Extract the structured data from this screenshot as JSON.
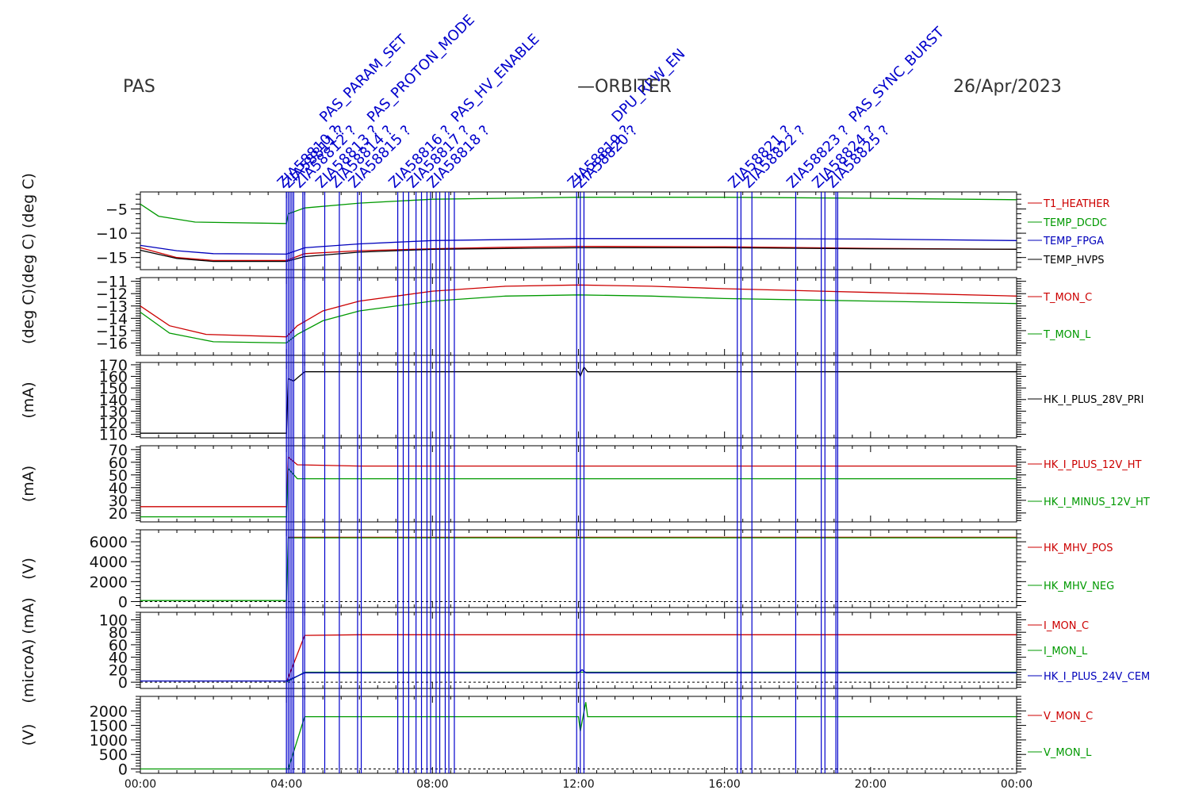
{
  "header": {
    "left": "PAS",
    "center": "—ORBITER",
    "right": "26/Apr/2023"
  },
  "colors": {
    "red": "#cc0000",
    "green": "#009900",
    "blue": "#0000bb",
    "black": "#000000",
    "event": "#0000cc"
  },
  "x_axis": {
    "min_h": 0,
    "max_h": 24,
    "ticks": [
      {
        "h": 0,
        "label": "00:00"
      },
      {
        "h": 4,
        "label": "04:00"
      },
      {
        "h": 8,
        "label": "08:00"
      },
      {
        "h": 12,
        "label": "12:00"
      },
      {
        "h": 16,
        "label": "16:00"
      },
      {
        "h": 20,
        "label": "20:00"
      },
      {
        "h": 24,
        "label": "00:00"
      }
    ]
  },
  "chart_data": [
    {
      "type": "line",
      "ylabel": "(deg C) (deg C)",
      "ylim": [
        -17.5,
        -1.5
      ],
      "yticks": [
        {
          "v": -5,
          "label": "−5"
        },
        {
          "v": -10,
          "label": "−10"
        },
        {
          "v": -15,
          "label": "−15"
        }
      ],
      "series": [
        {
          "name": "T1_HEATHER",
          "color": "red",
          "points": [
            [
              0,
              -13
            ],
            [
              1,
              -15
            ],
            [
              2,
              -15.6
            ],
            [
              4,
              -15.6
            ],
            [
              4.5,
              -14.2
            ],
            [
              6,
              -13.6
            ],
            [
              8,
              -13.2
            ],
            [
              10,
              -12.9
            ],
            [
              12,
              -12.7
            ],
            [
              16,
              -12.8
            ],
            [
              20,
              -13.1
            ],
            [
              24,
              -13.3
            ]
          ]
        },
        {
          "name": "TEMP_DCDC",
          "color": "green",
          "points": [
            [
              0,
              -4
            ],
            [
              0.5,
              -6.5
            ],
            [
              1.5,
              -7.7
            ],
            [
              4,
              -8
            ],
            [
              4.05,
              -6
            ],
            [
              4.5,
              -4.8
            ],
            [
              6,
              -3.8
            ],
            [
              8,
              -3
            ],
            [
              12,
              -2.6
            ],
            [
              16,
              -2.6
            ],
            [
              20,
              -2.8
            ],
            [
              24,
              -3.1
            ]
          ]
        },
        {
          "name": "TEMP_FPGA",
          "color": "blue",
          "points": [
            [
              0,
              -12.5
            ],
            [
              1,
              -13.6
            ],
            [
              2,
              -14.2
            ],
            [
              4,
              -14.3
            ],
            [
              4.5,
              -13
            ],
            [
              6,
              -12.2
            ],
            [
              8,
              -11.5
            ],
            [
              12,
              -11.1
            ],
            [
              16,
              -11.1
            ],
            [
              20,
              -11.2
            ],
            [
              24,
              -11.5
            ]
          ]
        },
        {
          "name": "TEMP_HVPS",
          "color": "black",
          "points": [
            [
              0,
              -13.5
            ],
            [
              1,
              -15.2
            ],
            [
              2,
              -15.8
            ],
            [
              4,
              -15.8
            ],
            [
              4.5,
              -14.8
            ],
            [
              6,
              -13.9
            ],
            [
              8,
              -13.3
            ],
            [
              12,
              -13
            ],
            [
              16,
              -13
            ],
            [
              20,
              -13.2
            ],
            [
              24,
              -13.3
            ]
          ]
        }
      ]
    },
    {
      "type": "line",
      "ylabel": "(deg C)",
      "ylim": [
        -17,
        -10.7
      ],
      "yticks": [
        {
          "v": -11,
          "label": "−11"
        },
        {
          "v": -12,
          "label": "−12"
        },
        {
          "v": -13,
          "label": "−13"
        },
        {
          "v": -14,
          "label": "−14"
        },
        {
          "v": -15,
          "label": "−15"
        },
        {
          "v": -16,
          "label": "−16"
        }
      ],
      "series": [
        {
          "name": "T_MON_C",
          "color": "red",
          "points": [
            [
              0,
              -13
            ],
            [
              0.8,
              -14.6
            ],
            [
              1.8,
              -15.3
            ],
            [
              4,
              -15.5
            ],
            [
              4.3,
              -14.6
            ],
            [
              5,
              -13.4
            ],
            [
              6,
              -12.6
            ],
            [
              8,
              -11.8
            ],
            [
              10,
              -11.4
            ],
            [
              12,
              -11.3
            ],
            [
              14,
              -11.4
            ],
            [
              16,
              -11.6
            ],
            [
              20,
              -11.9
            ],
            [
              24,
              -12.2
            ]
          ]
        },
        {
          "name": "T_MON_L",
          "color": "green",
          "points": [
            [
              0,
              -13.5
            ],
            [
              0.8,
              -15.2
            ],
            [
              2,
              -15.9
            ],
            [
              4,
              -16
            ],
            [
              4.3,
              -15.3
            ],
            [
              5,
              -14.2
            ],
            [
              6,
              -13.4
            ],
            [
              8,
              -12.6
            ],
            [
              10,
              -12.2
            ],
            [
              12,
              -12.1
            ],
            [
              14,
              -12.2
            ],
            [
              16,
              -12.4
            ],
            [
              20,
              -12.6
            ],
            [
              24,
              -12.8
            ]
          ]
        }
      ]
    },
    {
      "type": "line",
      "ylabel": "(mA)",
      "ylim": [
        107,
        172
      ],
      "yticks": [
        {
          "v": 170,
          "label": "170"
        },
        {
          "v": 160,
          "label": "160"
        },
        {
          "v": 150,
          "label": "150"
        },
        {
          "v": 140,
          "label": "140"
        },
        {
          "v": 130,
          "label": "130"
        },
        {
          "v": 120,
          "label": "120"
        },
        {
          "v": 110,
          "label": "110"
        }
      ],
      "series": [
        {
          "name": "HK_I_PLUS_28V_PRI",
          "color": "black",
          "points": [
            [
              0,
              111
            ],
            [
              4,
              111
            ],
            [
              4.05,
              158
            ],
            [
              4.2,
              156
            ],
            [
              4.35,
              160
            ],
            [
              4.5,
              164
            ],
            [
              12,
              164
            ],
            [
              12.05,
              160
            ],
            [
              12.15,
              168
            ],
            [
              12.25,
              164
            ],
            [
              24,
              164
            ]
          ]
        }
      ]
    },
    {
      "type": "line",
      "ylabel": "(mA)",
      "ylim": [
        13,
        73
      ],
      "yticks": [
        {
          "v": 70,
          "label": "70"
        },
        {
          "v": 60,
          "label": "60"
        },
        {
          "v": 50,
          "label": "50"
        },
        {
          "v": 40,
          "label": "40"
        },
        {
          "v": 30,
          "label": "30"
        },
        {
          "v": 20,
          "label": "20"
        }
      ],
      "series": [
        {
          "name": "HK_I_PLUS_12V_HT",
          "color": "red",
          "points": [
            [
              0,
              25
            ],
            [
              4,
              25
            ],
            [
              4.05,
              64
            ],
            [
              4.3,
              58
            ],
            [
              6,
              57
            ],
            [
              24,
              57
            ]
          ]
        },
        {
          "name": "HK_I_MINUS_12V_HT",
          "color": "green",
          "points": [
            [
              0,
              17
            ],
            [
              4,
              17
            ],
            [
              4.05,
              55
            ],
            [
              4.3,
              47
            ],
            [
              24,
              47
            ]
          ]
        }
      ]
    },
    {
      "type": "line",
      "ylabel": "(V)",
      "ylim": [
        -600,
        7200
      ],
      "yticks": [
        {
          "v": 6000,
          "label": "6000"
        },
        {
          "v": 4000,
          "label": "4000"
        },
        {
          "v": 2000,
          "label": "2000"
        },
        {
          "v": 0,
          "label": "0"
        }
      ],
      "zero_line": 0,
      "series": [
        {
          "name": "HK_MHV_POS",
          "color": "red",
          "points": [
            [
              4.05,
              6450
            ],
            [
              24,
              6450
            ]
          ]
        },
        {
          "name": "HK_MHV_NEG",
          "color": "green",
          "points": [
            [
              0,
              100
            ],
            [
              4,
              100
            ],
            [
              4.05,
              6400
            ],
            [
              24,
              6400
            ]
          ]
        }
      ]
    },
    {
      "type": "line",
      "ylabel": "(microA) (mA)",
      "ylim": [
        -10,
        112
      ],
      "yticks": [
        {
          "v": 100,
          "label": "100"
        },
        {
          "v": 80,
          "label": "80"
        },
        {
          "v": 60,
          "label": "60"
        },
        {
          "v": 40,
          "label": "40"
        },
        {
          "v": 20,
          "label": "20"
        },
        {
          "v": 0,
          "label": "0"
        }
      ],
      "zero_line": 0,
      "series": [
        {
          "name": "I_MON_C",
          "color": "red",
          "points": [
            [
              4,
              0
            ],
            [
              4.5,
              75
            ],
            [
              6,
              76
            ],
            [
              24,
              76
            ]
          ]
        },
        {
          "name": "I_MON_L",
          "color": "green",
          "points": [
            [
              4,
              0
            ],
            [
              4.5,
              16
            ],
            [
              24,
              16
            ]
          ]
        },
        {
          "name": "HK_I_PLUS_24V_CEM",
          "color": "blue",
          "points": [
            [
              0,
              2
            ],
            [
              4,
              2
            ],
            [
              4.5,
              15
            ],
            [
              12,
              15
            ],
            [
              12.1,
              20
            ],
            [
              12.2,
              15
            ],
            [
              24,
              15
            ]
          ]
        }
      ]
    },
    {
      "type": "line",
      "ylabel": "(V)",
      "ylim": [
        -150,
        2500
      ],
      "yticks": [
        {
          "v": 2000,
          "label": "2000"
        },
        {
          "v": 1500,
          "label": "1500"
        },
        {
          "v": 1000,
          "label": "1000"
        },
        {
          "v": 500,
          "label": "500"
        },
        {
          "v": 0,
          "label": "0"
        }
      ],
      "zero_line": 0,
      "series": [
        {
          "name": "V_MON_C",
          "color": "red",
          "points": []
        },
        {
          "name": "V_MON_L",
          "color": "green",
          "points": [
            [
              0,
              0
            ],
            [
              4,
              0
            ],
            [
              4.05,
              0
            ],
            [
              4.5,
              1800
            ],
            [
              12,
              1800
            ],
            [
              12.05,
              1300
            ],
            [
              12.2,
              2300
            ],
            [
              12.25,
              1800
            ],
            [
              24,
              1800
            ]
          ]
        }
      ]
    }
  ],
  "events": {
    "times_h": [
      4.0,
      4.05,
      4.1,
      4.15,
      4.2,
      4.45,
      4.5,
      5.05,
      5.45,
      5.95,
      6.05,
      7.05,
      7.2,
      7.35,
      7.55,
      7.7,
      7.85,
      7.95,
      8.1,
      8.2,
      8.35,
      8.45,
      8.6,
      11.95,
      12.05,
      12.15,
      16.35,
      16.45,
      16.75,
      17.95,
      18.65,
      18.75,
      19.05,
      19.1
    ],
    "labels": [
      {
        "h": 4.0,
        "text": "ZIA58810 ?"
      },
      {
        "h": 4.15,
        "text": "ZIA58811 ?"
      },
      {
        "h": 4.45,
        "text": "ZIA58812 ?"
      },
      {
        "h": 5.05,
        "text": "ZIA58813 ?"
      },
      {
        "h": 5.45,
        "text": "ZIA58814 ?"
      },
      {
        "h": 5.95,
        "text": "ZIA58815 ?"
      },
      {
        "h": 7.05,
        "text": "ZIA58816 ?"
      },
      {
        "h": 7.55,
        "text": "ZIA58817 ?"
      },
      {
        "h": 8.1,
        "text": "ZIA58818 ?"
      },
      {
        "h": 11.95,
        "text": "ZIA58819 ?"
      },
      {
        "h": 12.15,
        "text": "ZIA58820 ?"
      },
      {
        "h": 16.35,
        "text": "ZIA58821 ?"
      },
      {
        "h": 16.75,
        "text": "ZIA58822 ?"
      },
      {
        "h": 17.95,
        "text": "ZIA58823 ?"
      },
      {
        "h": 18.65,
        "text": "ZIA58824 ?"
      },
      {
        "h": 19.05,
        "text": "ZIA58825 ?"
      }
    ],
    "captions": [
      {
        "h": 4.2,
        "text": "PAS_PARAM_SET"
      },
      {
        "h": 5.5,
        "text": "PAS_PROTON_MODE"
      },
      {
        "h": 7.8,
        "text": "PAS_HV_ENABLE"
      },
      {
        "h": 12.2,
        "text": "DPU_RPW_EN"
      },
      {
        "h": 18.7,
        "text": "PAS_SYNC_BURST"
      }
    ]
  }
}
